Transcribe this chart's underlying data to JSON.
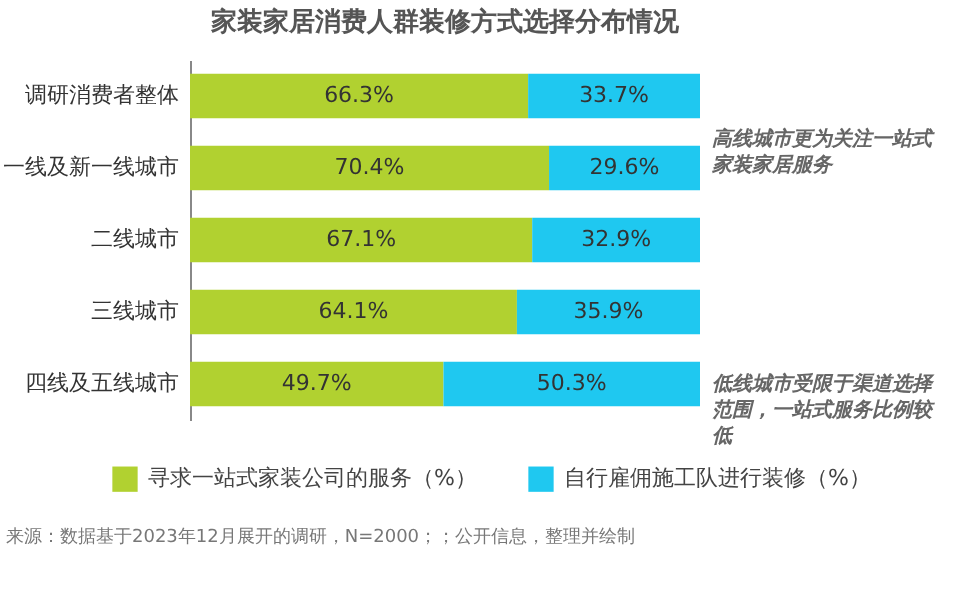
{
  "chart_data": {
    "type": "bar",
    "orientation": "horizontal",
    "stacked": true,
    "title": "家装家居消费人群装修方式选择分布情况",
    "categories": [
      "调研消费者整体",
      "一线及新一线城市",
      "二线城市",
      "三线城市",
      "四线及五线城市"
    ],
    "series": [
      {
        "name": "寻求一站式家装公司的服务（%）",
        "color": "#b1d130",
        "values": [
          66.3,
          70.4,
          67.1,
          64.1,
          49.7
        ],
        "value_labels": [
          "66.3%",
          "70.4%",
          "67.1%",
          "64.1%",
          "49.7%"
        ]
      },
      {
        "name": "自行雇佣施工队进行装修（%）",
        "color": "#1fc8f0",
        "values": [
          33.7,
          29.6,
          32.9,
          35.9,
          50.3
        ],
        "value_labels": [
          "33.7%",
          "29.6%",
          "32.9%",
          "35.9%",
          "50.3%"
        ]
      }
    ],
    "legend": "bottom",
    "grid": false,
    "annotations": [
      "高线城市更为关注一站式家装家居服务",
      "低线城市受限于渠道选择范围，一站式服务比例较低",
      "来源：数据基于2023年12月展开的调研，N=2000；；公开信息，整理并绘制"
    ]
  }
}
